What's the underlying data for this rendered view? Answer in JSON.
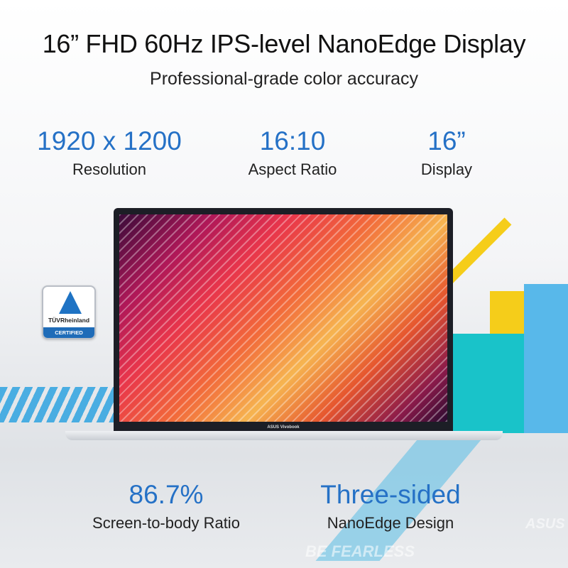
{
  "headline": "16” FHD 60Hz IPS-level NanoEdge Display",
  "subheadline": "Professional-grade color accuracy",
  "specs": [
    {
      "value": "1920 x 1200",
      "label": "Resolution"
    },
    {
      "value": "16:10",
      "label": "Aspect Ratio"
    },
    {
      "value": "16”",
      "label": "Display"
    }
  ],
  "features": [
    {
      "value": "86.7%",
      "label": "Screen-to-body Ratio"
    },
    {
      "value": "Three-sided",
      "label": "NanoEdge Design"
    }
  ],
  "laptop": {
    "brand": "ASUS Vivobook"
  },
  "badge": {
    "name": "TÜVRheinland",
    "status": "CERTIFIED"
  },
  "watermarks": {
    "slogan": "BE FEARLESS",
    "brand": "ASUS"
  },
  "colors": {
    "accent": "#2571c6",
    "yellow": "#f5cd1a",
    "teal": "#19c3c9",
    "sky": "#58b8ea"
  }
}
